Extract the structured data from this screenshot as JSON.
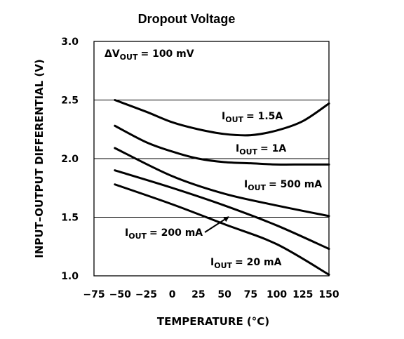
{
  "chart_data": {
    "type": "line",
    "title": "Dropout Voltage",
    "xlabel": "TEMPERATURE (°C)",
    "ylabel": "INPUT–OUTPUT DIFFERENTIAL (V)",
    "xlim": [
      -75,
      150
    ],
    "ylim": [
      1.0,
      3.0
    ],
    "x_ticks": [
      -75,
      -50,
      -25,
      0,
      25,
      50,
      75,
      100,
      125,
      150
    ],
    "x_tick_labels": [
      "−75",
      "−50",
      "−25",
      "0",
      "25",
      "50",
      "75",
      "100",
      "125",
      "150"
    ],
    "y_ticks": [
      1.0,
      1.5,
      2.0,
      2.5,
      3.0
    ],
    "y_tick_labels": [
      "1.0",
      "1.5",
      "2.0",
      "2.5",
      "3.0"
    ],
    "grid": "horizontal",
    "annotation": {
      "prefix": "ΔV",
      "sub": "OUT",
      "suffix": "= 100 mV"
    },
    "series": [
      {
        "name": "IOUT = 1.5A",
        "label": {
          "prefix": "I",
          "sub": "OUT",
          "suffix": "=  1.5A"
        },
        "x": [
          -55,
          -25,
          0,
          25,
          50,
          75,
          100,
          125,
          150
        ],
        "y": [
          2.5,
          2.4,
          2.31,
          2.25,
          2.21,
          2.2,
          2.24,
          2.32,
          2.47
        ]
      },
      {
        "name": "IOUT = 1A",
        "label": {
          "prefix": "I",
          "sub": "OUT",
          "suffix": "=  1A"
        },
        "x": [
          -55,
          -25,
          0,
          25,
          50,
          75,
          100,
          125,
          150
        ],
        "y": [
          2.28,
          2.14,
          2.06,
          2.0,
          1.97,
          1.96,
          1.95,
          1.95,
          1.95
        ]
      },
      {
        "name": "IOUT = 500 mA",
        "label": {
          "prefix": "I",
          "sub": "OUT",
          "suffix": "=  500 mA"
        },
        "x": [
          -55,
          0,
          50,
          100,
          150
        ],
        "y": [
          2.09,
          1.85,
          1.7,
          1.6,
          1.51
        ]
      },
      {
        "name": "IOUT = 200 mA",
        "label": {
          "prefix": "I",
          "sub": "OUT",
          "suffix": "=  200 mA"
        },
        "x": [
          -55,
          0,
          50,
          100,
          150
        ],
        "y": [
          1.9,
          1.75,
          1.6,
          1.43,
          1.23
        ]
      },
      {
        "name": "IOUT = 20 mA",
        "label": {
          "prefix": "I",
          "sub": "OUT",
          "suffix": "=  20 mA"
        },
        "x": [
          -55,
          0,
          50,
          100,
          150
        ],
        "y": [
          1.78,
          1.61,
          1.44,
          1.27,
          1.01
        ]
      }
    ]
  }
}
